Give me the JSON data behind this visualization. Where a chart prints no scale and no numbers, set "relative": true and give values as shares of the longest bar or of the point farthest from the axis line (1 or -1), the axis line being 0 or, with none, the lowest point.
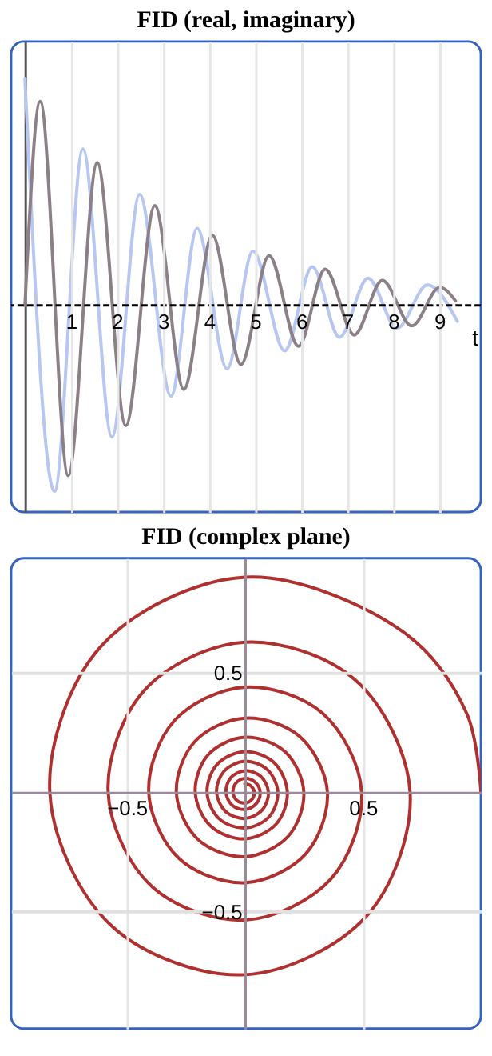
{
  "chart_data": [
    {
      "type": "line",
      "title": "FID (real, imaginary)",
      "xlabel": "t",
      "relative": true,
      "ref_lines": [
        {
          "axis": "y",
          "value": 0,
          "color": "#000000",
          "line_style": "dashed"
        }
      ],
      "xlim": [
        -0.3,
        9.9
      ],
      "xticks": [
        1,
        2,
        3,
        4,
        5,
        6,
        7,
        8,
        9
      ],
      "grid": "x",
      "tick_labels": "x",
      "series": [
        {
          "color": "#b8c6f2",
          "x": [
            0,
            0.64,
            1.26,
            1.89,
            2.49,
            3.17,
            3.74,
            4.39,
            4.95,
            5.64,
            6.24,
            6.83,
            7.45,
            8.08,
            8.74,
            9.39
          ],
          "values": [
            1,
            -0.82,
            0.69,
            -0.58,
            0.49,
            -0.4,
            0.34,
            -0.28,
            0.24,
            -0.2,
            0.17,
            -0.14,
            0.12,
            -0.1,
            0.09,
            -0.07
          ]
        },
        {
          "color": "#8c8088",
          "x": [
            0,
            0.33,
            0.94,
            1.57,
            2.19,
            2.82,
            3.45,
            4.07,
            4.69,
            5.3,
            5.94,
            6.52,
            7.15,
            7.76,
            8.4,
            9.01,
            9.35
          ],
          "values": [
            0,
            0.9,
            -0.75,
            0.63,
            -0.53,
            0.44,
            -0.37,
            0.31,
            -0.26,
            0.22,
            -0.18,
            0.16,
            -0.13,
            0.11,
            -0.09,
            0.08,
            0.02
          ]
        }
      ]
    },
    {
      "type": "line",
      "title": "FID (complex plane)",
      "xlim": [
        -0.99,
        1.0
      ],
      "ylim": [
        -0.99,
        0.98
      ],
      "xticks": [
        {
          "value": -0.5,
          "label": "−0.5"
        },
        0.5
      ],
      "yticks": [
        {
          "value": -0.5,
          "label": "−0.5"
        },
        0.5
      ],
      "grid": true,
      "series": [
        {
          "color": "#b03030",
          "x": [
            1.0,
            0.94,
            0.671,
            0,
            -0.61,
            -0.826,
            -0.562,
            0,
            0.517,
            0.7,
            0.469,
            0,
            -0.426,
            -0.579,
            -0.394,
            0,
            0.364,
            0.495,
            0.33,
            0,
            -0.299,
            -0.407,
            -0.278,
            0,
            0.258,
            0.35,
            0.233,
            0,
            -0.212,
            -0.29,
            -0.198,
            0,
            0.184,
            0.25,
            0.17,
            0,
            -0.156,
            -0.21,
            -0.143,
            0,
            0.133,
            0.18,
            0.124,
            0,
            -0.117,
            -0.16,
            -0.11,
            0,
            0.103,
            0.14,
            0.095,
            0,
            -0.088,
            -0.12,
            -0.081,
            0,
            0.074,
            0.1,
            0.067,
            0,
            -0.06,
            -0.08,
            -0.054,
            0,
            0.048,
            0.065,
            0.043,
            0,
            -0.038,
            -0.05,
            -0.034,
            0,
            0.03,
            0.04,
            0.026,
            0
          ],
          "values": [
            0,
            0.33,
            0.671,
            0.9,
            0.61,
            0,
            -0.562,
            -0.764,
            -0.517,
            0,
            0.469,
            0.628,
            0.426,
            0,
            -0.394,
            -0.535,
            -0.364,
            0,
            0.33,
            0.44,
            0.299,
            0,
            -0.278,
            -0.379,
            -0.258,
            0,
            0.233,
            0.31,
            0.212,
            0,
            -0.198,
            -0.27,
            -0.184,
            0,
            0.17,
            0.23,
            0.156,
            0,
            -0.143,
            -0.195,
            -0.133,
            0,
            0.124,
            0.17,
            0.117,
            0,
            -0.11,
            -0.15,
            -0.103,
            0,
            0.095,
            0.13,
            0.088,
            0,
            -0.081,
            -0.11,
            -0.074,
            0,
            0.067,
            0.09,
            0.06,
            0,
            -0.054,
            -0.072,
            -0.048,
            0,
            0.043,
            0.058,
            0.038,
            0,
            -0.034,
            -0.045,
            -0.03,
            0,
            0.026,
            0.035
          ]
        }
      ]
    }
  ]
}
